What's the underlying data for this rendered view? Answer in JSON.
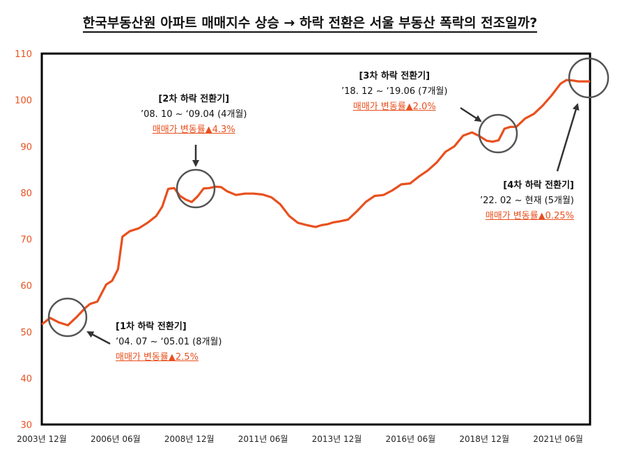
{
  "title": "한국부동산원 아파트 매매지수 상승 → 하락 전환은 서울 부동산 폭락의 전조일까?",
  "annotations": [
    {
      "heading": "[1차 하락 전환기]",
      "period": "’04. 07 ~ ‘05.01 (8개월)",
      "change": "매매가 변동률▲2.5%"
    },
    {
      "heading": "[2차 하락 전환기]",
      "period": "’08. 10 ~ ‘09.04 (4개월)",
      "change": "매매가 변동률▲4.3%"
    },
    {
      "heading": "[3차 하락 전환기]",
      "period": "’18. 12 ~ ‘19.06 (7개월)",
      "change": "매매가 변동률▲2.0%"
    },
    {
      "heading": "[4차 하락 전환기]",
      "period": "’22. 02 ~ 현재 (5개월)",
      "change": "매매가 변동률▲0.25%"
    }
  ],
  "colors": {
    "line": "#e8501e",
    "axis_text": "#e8501e",
    "circle": "#555555",
    "arrow": "#333333"
  },
  "chart_data": {
    "type": "line",
    "title": "한국부동산원 아파트 매매지수 상승 → 하락 전환은 서울 부동산 폭락의 전조일까?",
    "xlabel": "",
    "ylabel": "",
    "ylim": [
      30,
      110
    ],
    "yticks": [
      30,
      40,
      50,
      60,
      70,
      80,
      90,
      100,
      110
    ],
    "xlim": [
      2003.917,
      2022.5
    ],
    "xticks": [
      {
        "x": 2003.917,
        "label": "2003년 12월"
      },
      {
        "x": 2006.417,
        "label": "2006년 06월"
      },
      {
        "x": 2008.917,
        "label": "2008년 12월"
      },
      {
        "x": 2011.417,
        "label": "2011년 06월"
      },
      {
        "x": 2013.917,
        "label": "2013년 12월"
      },
      {
        "x": 2016.417,
        "label": "2016년 06월"
      },
      {
        "x": 2018.917,
        "label": "2018년 12월"
      },
      {
        "x": 2021.417,
        "label": "2021년 06월"
      }
    ],
    "series": [
      {
        "name": "아파트 매매지수",
        "x": [
          2003.92,
          2004.2,
          2004.5,
          2004.8,
          2005.1,
          2005.4,
          2005.55,
          2005.8,
          2006.1,
          2006.3,
          2006.5,
          2006.65,
          2006.9,
          2007.0,
          2007.2,
          2007.5,
          2007.8,
          2008.0,
          2008.2,
          2008.4,
          2008.6,
          2008.8,
          2009.0,
          2009.2,
          2009.4,
          2009.6,
          2009.8,
          2010.0,
          2010.2,
          2010.5,
          2010.8,
          2011.1,
          2011.4,
          2011.7,
          2012.0,
          2012.3,
          2012.6,
          2012.9,
          2013.2,
          2013.4,
          2013.6,
          2013.8,
          2014.0,
          2014.3,
          2014.6,
          2014.9,
          2015.2,
          2015.5,
          2015.8,
          2016.1,
          2016.4,
          2016.7,
          2017.0,
          2017.3,
          2017.6,
          2017.9,
          2018.2,
          2018.5,
          2018.75,
          2019.0,
          2019.2,
          2019.4,
          2019.6,
          2019.8,
          2020.0,
          2020.3,
          2020.6,
          2020.9,
          2021.2,
          2021.5,
          2021.7,
          2021.9,
          2022.1,
          2022.3,
          2022.5
        ],
        "values": [
          51.6,
          53.0,
          52.0,
          51.4,
          53.2,
          55.2,
          56.0,
          56.5,
          60.2,
          61.0,
          63.5,
          70.5,
          71.7,
          71.9,
          72.3,
          73.5,
          75.0,
          77.0,
          80.8,
          81.0,
          79.3,
          78.5,
          78.0,
          79.2,
          80.9,
          81.0,
          81.3,
          81.2,
          80.3,
          79.5,
          79.8,
          79.8,
          79.6,
          79.0,
          77.5,
          75.0,
          73.5,
          73.0,
          72.6,
          73.0,
          73.2,
          73.6,
          73.8,
          74.2,
          76.0,
          78.0,
          79.3,
          79.5,
          80.5,
          81.8,
          82.0,
          83.5,
          84.8,
          86.5,
          88.8,
          90.0,
          92.3,
          93.0,
          92.2,
          91.2,
          91.0,
          91.3,
          93.8,
          94.2,
          94.2,
          96.0,
          97.0,
          98.8,
          101.0,
          103.5,
          104.3,
          104.2,
          104.0,
          104.0,
          104.0
        ]
      }
    ]
  }
}
